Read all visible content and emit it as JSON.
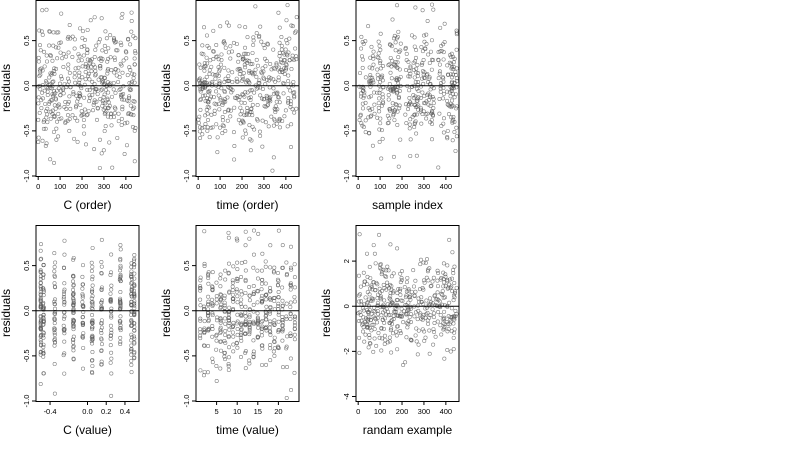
{
  "chart_data": [
    {
      "type": "scatter",
      "xlabel": "C (order)",
      "ylabel": "residuals",
      "xlim": [
        -10,
        460
      ],
      "ylim": [
        -1.0,
        0.95
      ],
      "xticks": [
        0,
        100,
        200,
        300,
        400
      ],
      "xtick_labels": [
        "0",
        "100",
        "200",
        "300",
        "400"
      ],
      "yticks": [
        -1.0,
        -0.5,
        0.0,
        0.5
      ],
      "ytick_labels": [
        "-1.0",
        "-0.5",
        "0.0",
        "0.5"
      ],
      "hline": 0,
      "seed": 11,
      "points": {
        "n": 450,
        "x_min": 0,
        "x_max": 450,
        "pattern": "uniform",
        "sd": 0.32,
        "y_min": -0.95,
        "y_max": 0.88
      }
    },
    {
      "type": "scatter",
      "xlabel": "time (order)",
      "ylabel": "residuals",
      "xlim": [
        -10,
        460
      ],
      "ylim": [
        -1.0,
        0.95
      ],
      "xticks": [
        0,
        100,
        200,
        300,
        400
      ],
      "xtick_labels": [
        "0",
        "100",
        "200",
        "300",
        "400"
      ],
      "yticks": [
        -1.0,
        -0.5,
        0.0,
        0.5
      ],
      "ytick_labels": [
        "-1.0",
        "-0.5",
        "0.0",
        "0.5"
      ],
      "hline": 0,
      "seed": 23,
      "points": {
        "n": 450,
        "x_min": 0,
        "x_max": 450,
        "pattern": "uniform",
        "sd": 0.32,
        "y_min": -0.97,
        "y_max": 0.9
      }
    },
    {
      "type": "scatter",
      "xlabel": "sample index",
      "ylabel": "residuals",
      "xlim": [
        -10,
        460
      ],
      "ylim": [
        -1.0,
        0.95
      ],
      "xticks": [
        0,
        100,
        200,
        300,
        400
      ],
      "xtick_labels": [
        "0",
        "100",
        "200",
        "300",
        "400"
      ],
      "yticks": [
        -1.0,
        -0.5,
        0.0,
        0.5
      ],
      "ytick_labels": [
        "-1.0",
        "-0.5",
        "0.0",
        "0.5"
      ],
      "hline": 0,
      "seed": 37,
      "points": {
        "n": 450,
        "x_min": 0,
        "x_max": 450,
        "pattern": "clustered",
        "sd": 0.32,
        "y_min": -0.95,
        "y_max": 0.9
      }
    },
    {
      "type": "scatter",
      "xlabel": "C (value)",
      "ylabel": "residuals",
      "xlim": [
        -0.55,
        0.55
      ],
      "ylim": [
        -1.0,
        0.95
      ],
      "xticks": [
        -0.4,
        0.0,
        0.2,
        0.4
      ],
      "xtick_labels": [
        "-0.4",
        "0.0",
        "0.2",
        "0.4"
      ],
      "yticks": [
        -1.0,
        -0.5,
        0.0,
        0.5
      ],
      "ytick_labels": [
        "-1.0",
        "-0.5",
        "0.0",
        "0.5"
      ],
      "hline": 0,
      "seed": 53,
      "points": {
        "n": 450,
        "x_min": -0.5,
        "x_max": 0.5,
        "pattern": "columns",
        "columns": [
          -0.5,
          -0.47,
          -0.35,
          -0.25,
          -0.15,
          -0.05,
          0.05,
          0.15,
          0.25,
          0.35,
          0.47,
          0.5
        ],
        "sd": 0.32,
        "y_min": -0.95,
        "y_max": 0.88
      }
    },
    {
      "type": "scatter",
      "xlabel": "time (value)",
      "ylabel": "residuals",
      "xlim": [
        0,
        25
      ],
      "ylim": [
        -1.0,
        0.95
      ],
      "xticks": [
        5,
        10,
        15,
        20
      ],
      "xtick_labels": [
        "5",
        "10",
        "15",
        "20"
      ],
      "yticks": [
        -1.0,
        -0.5,
        0.0,
        0.5
      ],
      "ytick_labels": [
        "-1.0",
        "-0.5",
        "0.0",
        "0.5"
      ],
      "hline": 0,
      "seed": 71,
      "points": {
        "n": 450,
        "x_min": 1,
        "x_max": 24,
        "pattern": "columns",
        "columns": [
          1,
          2,
          3,
          4,
          5,
          6,
          7,
          8,
          9,
          10,
          11,
          12,
          13,
          14,
          15,
          16,
          17,
          18,
          19,
          20,
          21,
          22,
          23,
          24
        ],
        "sd": 0.32,
        "y_min": -0.97,
        "y_max": 0.9
      }
    },
    {
      "type": "scatter",
      "xlabel": "randam example",
      "ylabel": "residuals",
      "xlim": [
        -10,
        460
      ],
      "ylim": [
        -4.2,
        3.6
      ],
      "xticks": [
        0,
        100,
        200,
        300,
        400
      ],
      "xtick_labels": [
        "0",
        "100",
        "200",
        "300",
        "400"
      ],
      "yticks": [
        -4,
        -2,
        0,
        2
      ],
      "ytick_labels": [
        "-4",
        "-2",
        "0",
        "2"
      ],
      "hline": 0,
      "seed": 97,
      "points": {
        "n": 450,
        "x_min": 0,
        "x_max": 450,
        "pattern": "uniform",
        "sd": 1.0,
        "y_min": -4.0,
        "y_max": 3.2
      }
    }
  ],
  "style": {
    "point_color": "#555555",
    "axis_color": "#000000",
    "hline_color": "#000000",
    "background": "#ffffff"
  }
}
